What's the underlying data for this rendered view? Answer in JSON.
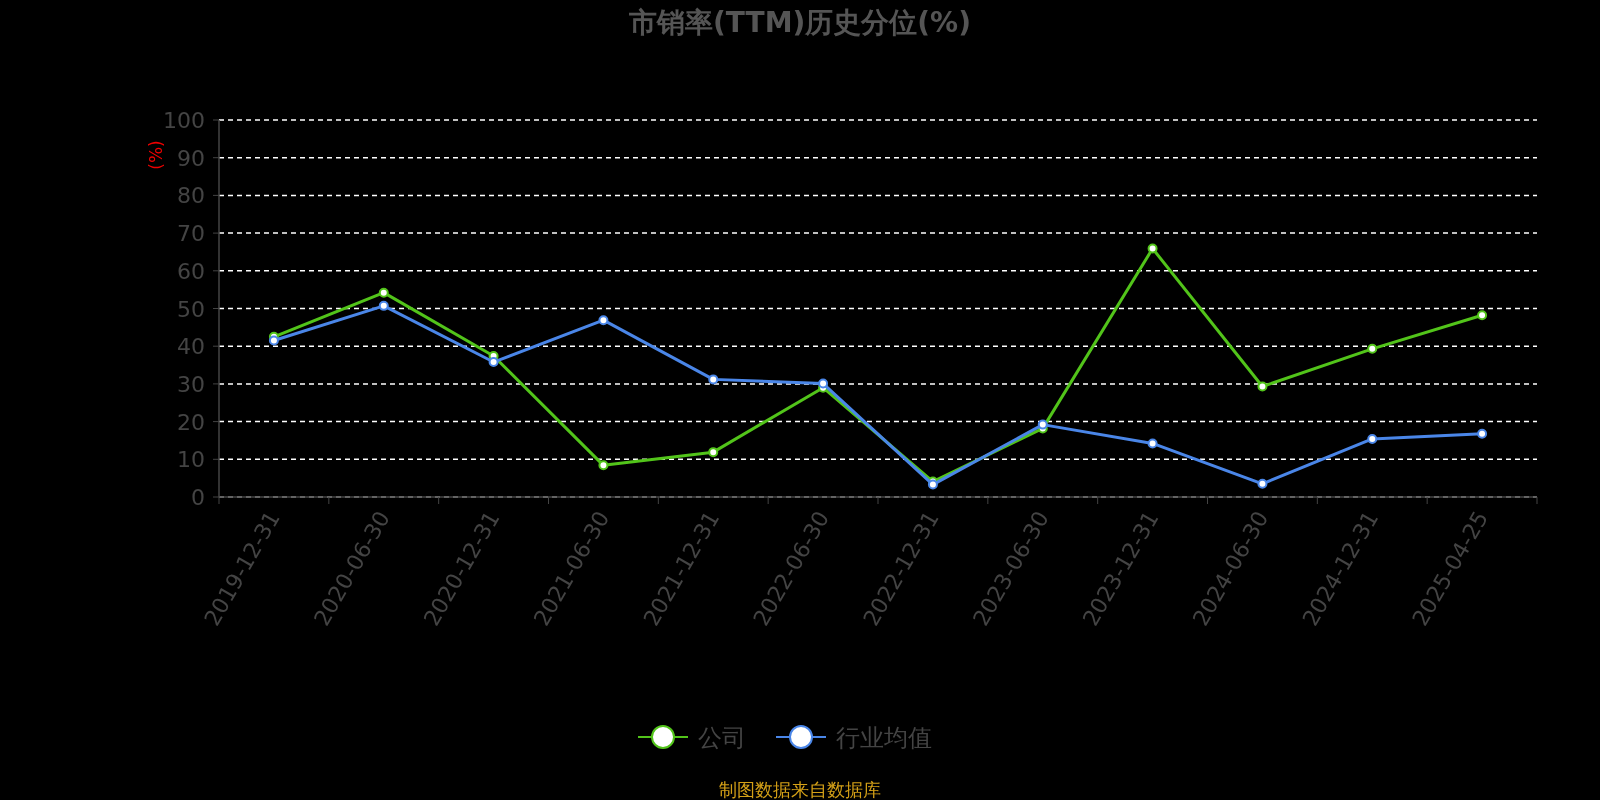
{
  "chart_data": {
    "type": "line",
    "title": "市销率(TTM)历史分位(%)",
    "ylabel": "(%)",
    "categories": [
      "2019-12-31",
      "2020-06-30",
      "2020-12-31",
      "2021-06-30",
      "2021-12-31",
      "2022-06-30",
      "2022-12-31",
      "2023-06-30",
      "2023-12-31",
      "2024-06-30",
      "2024-12-31",
      "2025-04-25"
    ],
    "series": [
      {
        "name": "公司",
        "color": "#52c41a",
        "values": [
          42.5,
          54.2,
          37.4,
          8.4,
          11.9,
          29.0,
          4.1,
          18.2,
          65.9,
          29.3,
          39.3,
          48.2
        ]
      },
      {
        "name": "行业均值",
        "color": "#4a86e8",
        "values": [
          41.5,
          50.7,
          35.8,
          46.9,
          31.2,
          30.1,
          3.3,
          19.2,
          14.2,
          3.5,
          15.4,
          16.8
        ]
      }
    ],
    "ylim": [
      0,
      100
    ],
    "yticks": [
      0,
      10,
      20,
      30,
      40,
      50,
      60,
      70,
      80,
      90,
      100
    ],
    "grid": "y",
    "legend": "bottom",
    "marker": "circle",
    "line_style": "solid",
    "annotations": [
      "制图数据来自数据库"
    ]
  }
}
